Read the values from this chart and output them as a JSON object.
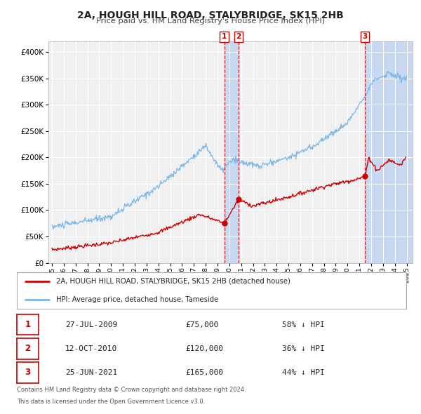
{
  "title": "2A, HOUGH HILL ROAD, STALYBRIDGE, SK15 2HB",
  "subtitle": "Price paid vs. HM Land Registry's House Price Index (HPI)",
  "legend_line1": "2A, HOUGH HILL ROAD, STALYBRIDGE, SK15 2HB (detached house)",
  "legend_line2": "HPI: Average price, detached house, Tameside",
  "footer_line1": "Contains HM Land Registry data © Crown copyright and database right 2024.",
  "footer_line2": "This data is licensed under the Open Government Licence v3.0.",
  "transactions": [
    {
      "label": "1",
      "date": "27-JUL-2009",
      "date_num": 2009.57,
      "price": 75000,
      "hpi_pct": "58% ↓ HPI"
    },
    {
      "label": "2",
      "date": "12-OCT-2010",
      "date_num": 2010.78,
      "price": 120000,
      "hpi_pct": "36% ↓ HPI"
    },
    {
      "label": "3",
      "date": "25-JUN-2021",
      "date_num": 2021.48,
      "price": 165000,
      "hpi_pct": "44% ↓ HPI"
    }
  ],
  "hpi_color": "#7ab8e8",
  "price_color": "#cc0000",
  "marker_color": "#cc0000",
  "vline_color": "#cc0000",
  "label_box_color": "#cc0000",
  "background_color": "#ffffff",
  "plot_bg_color": "#f0f0f0",
  "grid_color": "#ffffff",
  "shade_color": "#c8d8f0",
  "ylim": [
    0,
    420000
  ],
  "ytick_step": 50000,
  "xmin": 1994.7,
  "xmax": 2025.5
}
